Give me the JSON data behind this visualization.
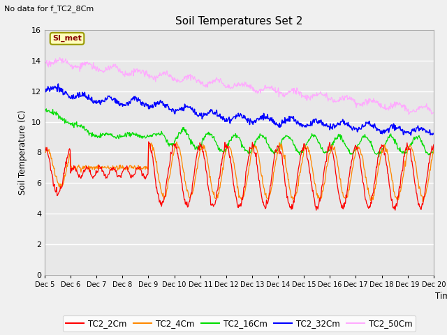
{
  "title": "Soil Temperatures Set 2",
  "subtitle": "No data for f_TC2_8Cm",
  "ylabel": "Soil Temperature (C)",
  "xlabel": "Time",
  "ylim": [
    0,
    16
  ],
  "yticks": [
    0,
    2,
    4,
    6,
    8,
    10,
    12,
    14,
    16
  ],
  "x_labels": [
    "Dec 5",
    "Dec 6",
    "Dec 7",
    "Dec 8",
    "Dec 9",
    "Dec 10",
    "Dec 11",
    "Dec 12",
    "Dec 13",
    "Dec 14",
    "Dec 15",
    "Dec 16",
    "Dec 17",
    "Dec 18",
    "Dec 19",
    "Dec 20"
  ],
  "series_colors": {
    "TC2_2Cm": "#ff0000",
    "TC2_4Cm": "#ff8800",
    "TC2_16Cm": "#00dd00",
    "TC2_32Cm": "#0000ff",
    "TC2_50Cm": "#ffaaff"
  },
  "legend_label": "SI_met",
  "bg_color": "#e8e8e8",
  "grid_color": "#ffffff",
  "fig_bg": "#f0f0f0"
}
